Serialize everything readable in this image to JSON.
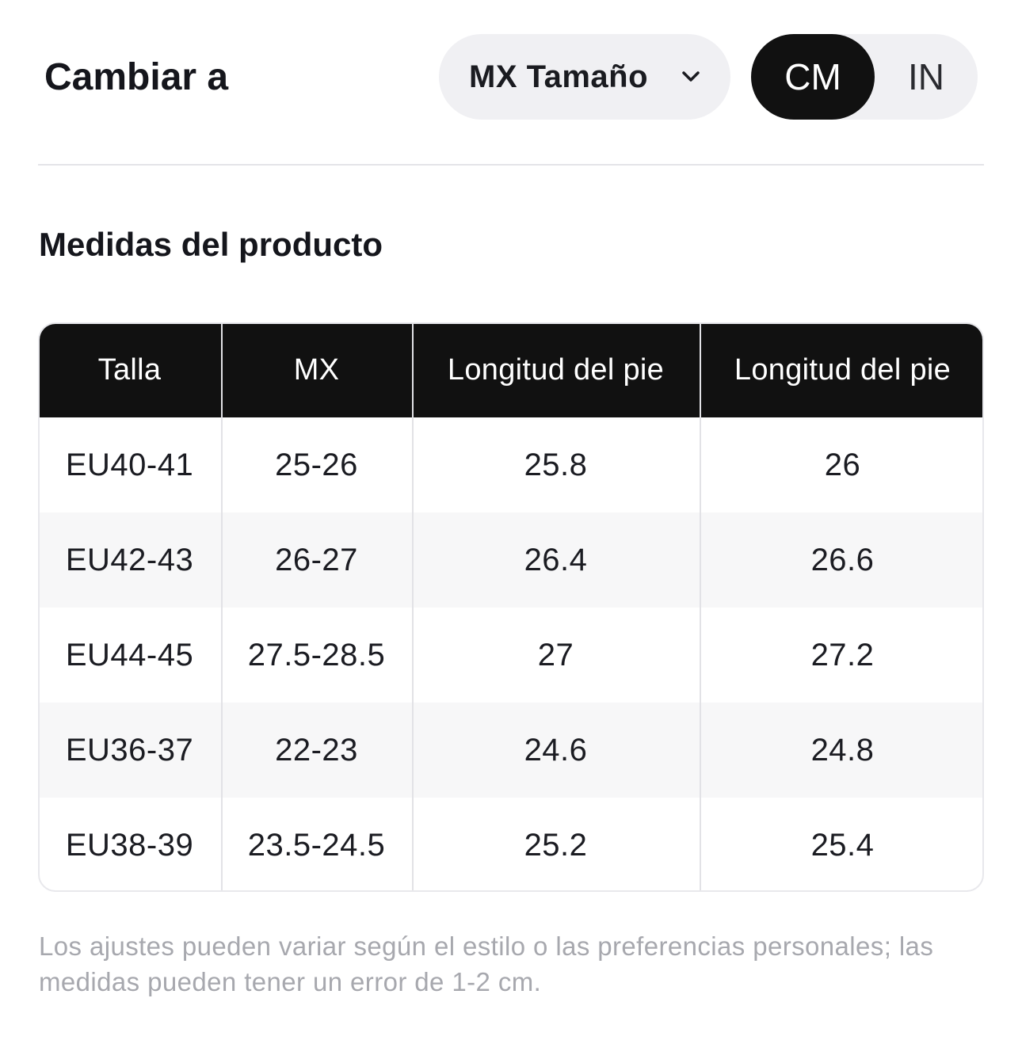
{
  "header": {
    "title": "Cambiar a",
    "size_select_value": "MX Tamaño",
    "units": [
      {
        "label": "CM",
        "selected": true
      },
      {
        "label": "IN",
        "selected": false
      }
    ]
  },
  "section_title": "Medidas del producto",
  "table": {
    "headers": [
      "Talla",
      "MX",
      "Longitud del pie",
      "Longitud del pie"
    ],
    "rows": [
      [
        "EU40-41",
        "25-26",
        "25.8",
        "26"
      ],
      [
        "EU42-43",
        "26-27",
        "26.4",
        "26.6"
      ],
      [
        "EU44-45",
        "27.5-28.5",
        "27",
        "27.2"
      ],
      [
        "EU36-37",
        "22-23",
        "24.6",
        "24.8"
      ],
      [
        "EU38-39",
        "23.5-24.5",
        "25.2",
        "25.4"
      ]
    ]
  },
  "footnote": "Los ajustes pueden variar según el estilo o las preferencias personales; las medidas pueden tener un error de 1-2 cm.",
  "colors": {
    "header_bg": "#111111",
    "selected_unit_bg": "#111111",
    "pill_bg": "#f0f0f3",
    "alt_row_bg": "#f7f7f8",
    "footnote_text": "#a7a8ae"
  }
}
